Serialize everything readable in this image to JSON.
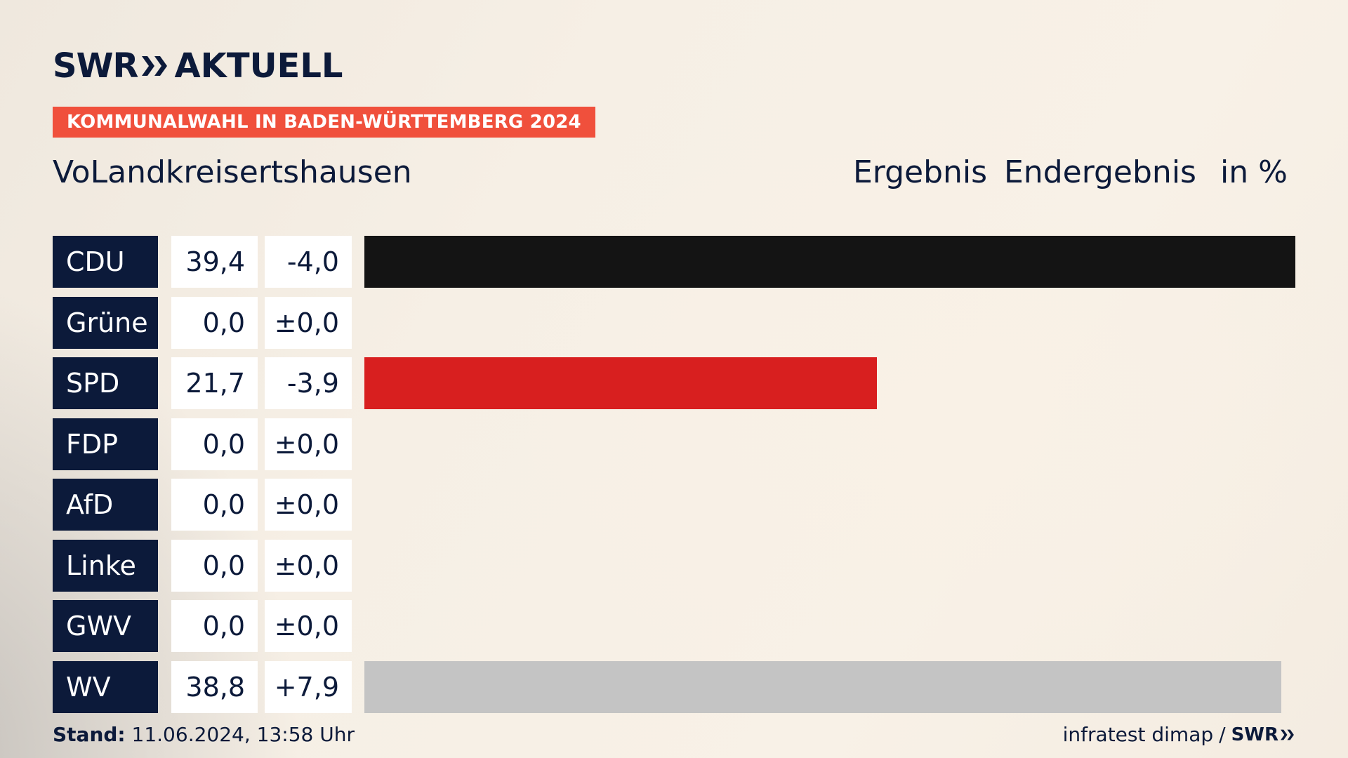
{
  "brand": {
    "name": "SWR",
    "product": "AKTUELL"
  },
  "banner": "KOMMUNALWAHL IN BADEN-WÜRTTEMBERG 2024",
  "place": "VoLandkreisertshausen",
  "columns": {
    "result": "Ergebnis",
    "status": "Endergebnis",
    "unit": "in %"
  },
  "chart_data": {
    "type": "bar",
    "categories": [
      "CDU",
      "Grüne",
      "SPD",
      "FDP",
      "AfD",
      "Linke",
      "GWV",
      "WV"
    ],
    "values": [
      39.4,
      0.0,
      21.7,
      0.0,
      0.0,
      0.0,
      0.0,
      38.8
    ],
    "values_label": [
      "39,4",
      "0,0",
      "21,7",
      "0,0",
      "0,0",
      "0,0",
      "0,0",
      "38,8"
    ],
    "diff_label": [
      "-4,0",
      "±0,0",
      "-3,9",
      "±0,0",
      "±0,0",
      "±0,0",
      "±0,0",
      "+7,9"
    ],
    "colors": [
      "#141414",
      "#4aa13a",
      "#d81f1f",
      "#f5d200",
      "#1a9bd7",
      "#b4277c",
      "#7a7a7a",
      "#c4c4c4"
    ],
    "max": 39.4
  },
  "footer": {
    "stand_label": "Stand:",
    "stand_value": "11.06.2024, 13:58 Uhr",
    "source": "infratest dimap",
    "separator": "/",
    "brand": "SWR"
  }
}
